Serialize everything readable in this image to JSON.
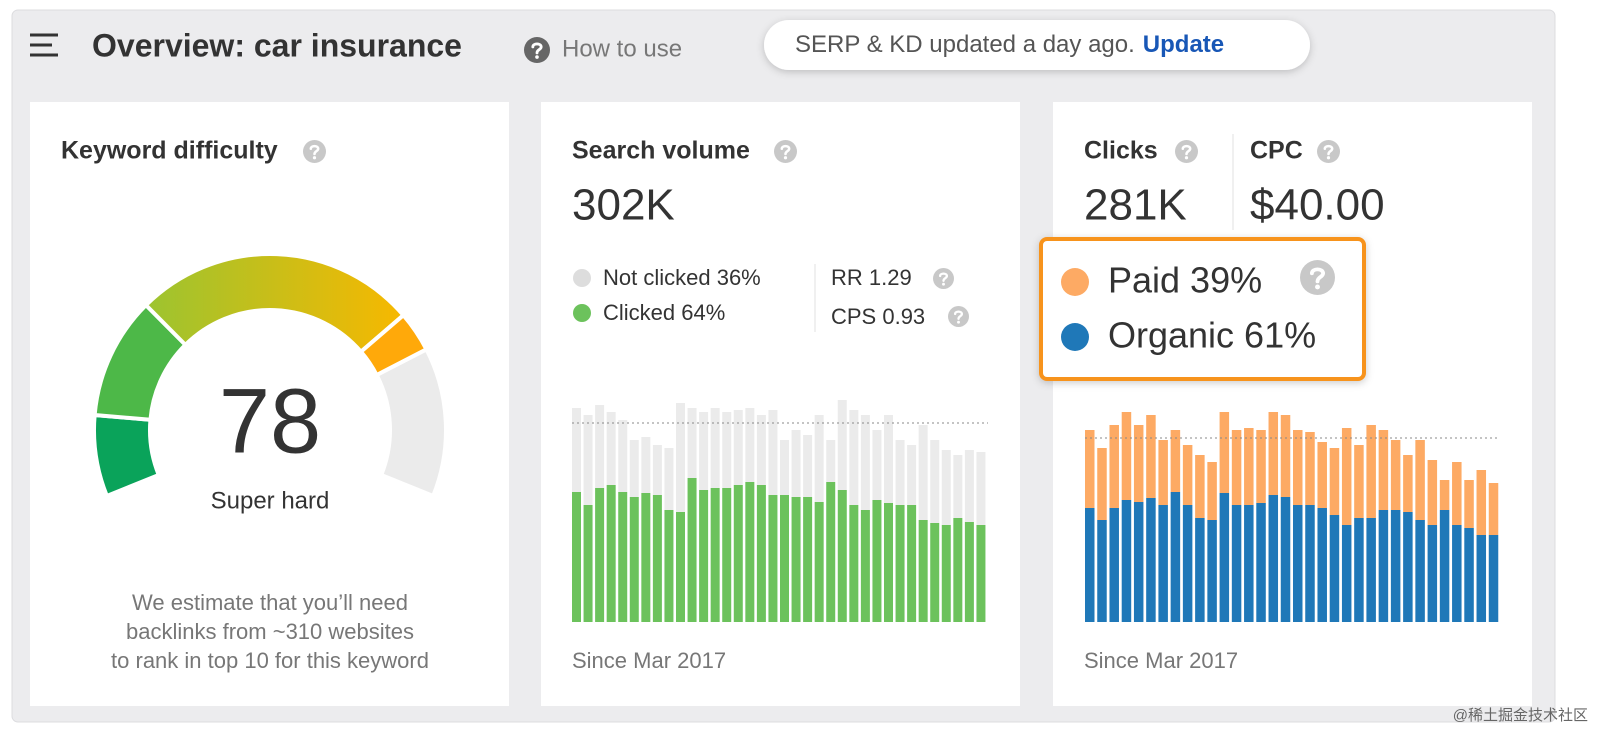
{
  "header": {
    "title": "Overview: car insurance",
    "help": "How to use",
    "status": "SERP & KD updated a day ago.",
    "action": "Update"
  },
  "keyword_difficulty": {
    "title": "Keyword difficulty",
    "value": 78,
    "rating": "Super hard",
    "description": [
      "We estimate that you’ll need",
      "backlinks from ~310 websites",
      "to rank in top 10 for this keyword"
    ]
  },
  "search_volume": {
    "title": "Search volume",
    "value": "302K",
    "legend": [
      "Not clicked 36%",
      "Clicked 64%"
    ],
    "metrics": [
      "RR 1.29",
      "CPS 0.93"
    ],
    "chart": {
      "type": "bar",
      "stacked": true,
      "series": [
        {
          "color": "#6cc25c",
          "values": [
            130,
            117,
            134,
            137,
            130,
            125,
            129,
            127,
            112,
            110,
            144,
            132,
            134,
            134,
            137,
            140,
            137,
            127,
            127,
            125,
            125,
            120,
            140,
            132,
            117,
            112,
            122,
            119,
            117,
            117,
            102,
            99,
            97,
            104,
            100,
            97
          ]
        },
        {
          "color": "#ebebeb",
          "values": [
            84,
            90,
            83,
            73,
            72,
            57,
            56,
            50,
            62,
            109,
            70,
            78,
            80,
            76,
            75,
            74,
            70,
            85,
            55,
            67,
            62,
            87,
            42,
            90,
            95,
            95,
            70,
            88,
            65,
            60,
            95,
            83,
            75,
            63,
            72,
            73
          ]
        }
      ]
    },
    "footer": "Since Mar 2017"
  },
  "clicks": {
    "title": "Clicks",
    "value": "281K",
    "legend": [
      "Paid 39%",
      "Organic 61%"
    ],
    "legend_colors": [
      "#fdaa64",
      "#1f78b8"
    ],
    "chart": {
      "type": "bar",
      "stacked": true,
      "series": [
        {
          "color": "#1f78b8",
          "values": [
            114,
            102,
            114,
            122,
            120,
            124,
            117,
            130,
            117,
            104,
            102,
            129,
            117,
            117,
            119,
            127,
            125,
            117,
            117,
            114,
            107,
            97,
            104,
            104,
            112,
            112,
            110,
            102,
            97,
            112,
            97,
            94,
            87,
            87
          ]
        },
        {
          "color": "#fdaa64",
          "values": [
            78,
            72,
            83,
            88,
            77,
            83,
            65,
            62,
            60,
            63,
            58,
            81,
            75,
            77,
            73,
            83,
            82,
            75,
            73,
            66,
            67,
            97,
            73,
            93,
            80,
            70,
            57,
            80,
            65,
            30,
            63,
            48,
            65,
            52
          ]
        }
      ]
    },
    "footer": "Since Mar 2017"
  },
  "cpc": {
    "title": "CPC",
    "value": "$40.00"
  },
  "watermark": "@稀土掘金技术社区"
}
